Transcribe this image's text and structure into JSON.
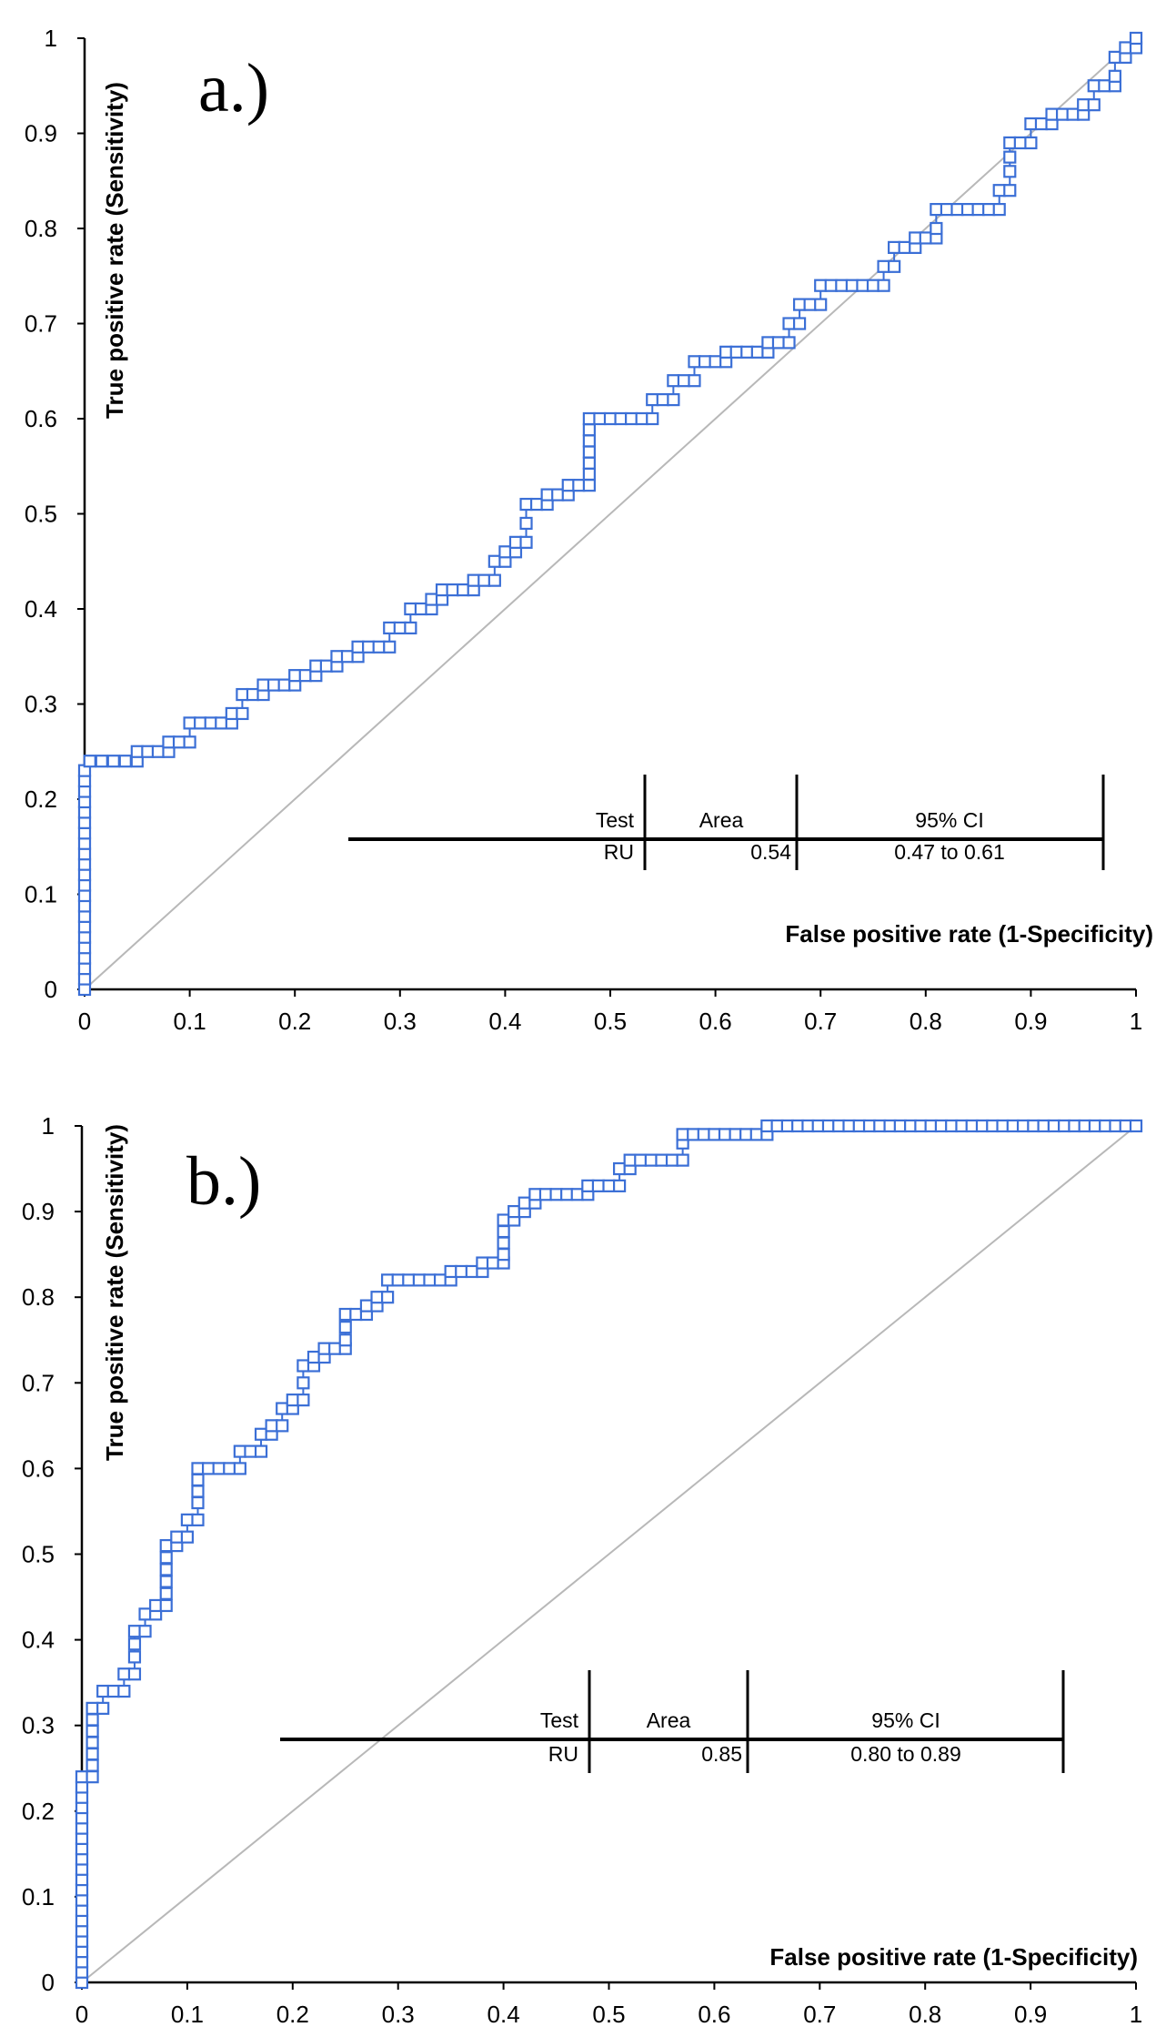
{
  "chart_data": [
    {
      "type": "line",
      "panel_label": "a.)",
      "xlabel": "False positive rate (1-Specificity)",
      "ylabel": "True positive rate (Sensitivity)",
      "xlim": [
        0,
        1
      ],
      "ylim": [
        0,
        1
      ],
      "xticks": [
        "0",
        "0.1",
        "0.2",
        "0.3",
        "0.4",
        "0.5",
        "0.6",
        "0.7",
        "0.8",
        "0.9",
        "1"
      ],
      "yticks": [
        "0",
        "0.1",
        "0.2",
        "0.3",
        "0.4",
        "0.5",
        "0.6",
        "0.7",
        "0.8",
        "0.9",
        "1"
      ],
      "reference_line": true,
      "marker": "open-square",
      "color": "#3b6fd6",
      "roc_points": [
        [
          0,
          0
        ],
        [
          0,
          0.23
        ],
        [
          0.005,
          0.24
        ],
        [
          0.05,
          0.25
        ],
        [
          0.08,
          0.26
        ],
        [
          0.1,
          0.28
        ],
        [
          0.14,
          0.29
        ],
        [
          0.15,
          0.31
        ],
        [
          0.17,
          0.32
        ],
        [
          0.2,
          0.33
        ],
        [
          0.22,
          0.34
        ],
        [
          0.24,
          0.35
        ],
        [
          0.26,
          0.36
        ],
        [
          0.29,
          0.38
        ],
        [
          0.31,
          0.4
        ],
        [
          0.33,
          0.41
        ],
        [
          0.34,
          0.42
        ],
        [
          0.37,
          0.43
        ],
        [
          0.39,
          0.45
        ],
        [
          0.4,
          0.46
        ],
        [
          0.41,
          0.47
        ],
        [
          0.42,
          0.49
        ],
        [
          0.42,
          0.51
        ],
        [
          0.44,
          0.52
        ],
        [
          0.46,
          0.53
        ],
        [
          0.48,
          0.53
        ],
        [
          0.48,
          0.6
        ],
        [
          0.53,
          0.6
        ],
        [
          0.54,
          0.62
        ],
        [
          0.56,
          0.64
        ],
        [
          0.58,
          0.66
        ],
        [
          0.61,
          0.67
        ],
        [
          0.63,
          0.67
        ],
        [
          0.65,
          0.68
        ],
        [
          0.67,
          0.7
        ],
        [
          0.68,
          0.72
        ],
        [
          0.7,
          0.74
        ],
        [
          0.75,
          0.74
        ],
        [
          0.76,
          0.76
        ],
        [
          0.77,
          0.78
        ],
        [
          0.79,
          0.79
        ],
        [
          0.81,
          0.8
        ],
        [
          0.81,
          0.82
        ],
        [
          0.86,
          0.82
        ],
        [
          0.87,
          0.84
        ],
        [
          0.88,
          0.86
        ],
        [
          0.88,
          0.89
        ],
        [
          0.9,
          0.91
        ],
        [
          0.92,
          0.92
        ],
        [
          0.95,
          0.93
        ],
        [
          0.96,
          0.95
        ],
        [
          0.98,
          0.96
        ],
        [
          0.98,
          0.98
        ],
        [
          0.99,
          0.99
        ],
        [
          1,
          1
        ]
      ],
      "table": {
        "headers": [
          "Test",
          "Area",
          "95% CI"
        ],
        "row": {
          "test": "RU",
          "area": "0.54",
          "ci": "0.47  to 0.61"
        }
      }
    },
    {
      "type": "line",
      "panel_label": "b.)",
      "xlabel": "False positive rate (1-Specificity)",
      "ylabel": "True positive rate (Sensitivity)",
      "xlim": [
        0,
        1
      ],
      "ylim": [
        0,
        1
      ],
      "xticks": [
        "0",
        "0.1",
        "0.2",
        "0.3",
        "0.4",
        "0.5",
        "0.6",
        "0.7",
        "0.8",
        "0.9",
        "1"
      ],
      "yticks": [
        "0",
        "0.1",
        "0.2",
        "0.3",
        "0.4",
        "0.5",
        "0.6",
        "0.7",
        "0.8",
        "0.9",
        "1"
      ],
      "reference_line": true,
      "marker": "open-square",
      "color": "#3b6fd6",
      "roc_points": [
        [
          0,
          0
        ],
        [
          0,
          0.24
        ],
        [
          0.01,
          0.24
        ],
        [
          0.01,
          0.32
        ],
        [
          0.02,
          0.34
        ],
        [
          0.03,
          0.34
        ],
        [
          0.04,
          0.36
        ],
        [
          0.05,
          0.38
        ],
        [
          0.05,
          0.41
        ],
        [
          0.06,
          0.43
        ],
        [
          0.07,
          0.44
        ],
        [
          0.08,
          0.44
        ],
        [
          0.08,
          0.51
        ],
        [
          0.09,
          0.52
        ],
        [
          0.1,
          0.54
        ],
        [
          0.11,
          0.56
        ],
        [
          0.11,
          0.6
        ],
        [
          0.15,
          0.6
        ],
        [
          0.15,
          0.62
        ],
        [
          0.17,
          0.64
        ],
        [
          0.18,
          0.65
        ],
        [
          0.19,
          0.67
        ],
        [
          0.2,
          0.68
        ],
        [
          0.21,
          0.7
        ],
        [
          0.21,
          0.72
        ],
        [
          0.22,
          0.73
        ],
        [
          0.23,
          0.74
        ],
        [
          0.25,
          0.75
        ],
        [
          0.25,
          0.78
        ],
        [
          0.27,
          0.79
        ],
        [
          0.28,
          0.8
        ],
        [
          0.29,
          0.82
        ],
        [
          0.35,
          0.82
        ],
        [
          0.35,
          0.83
        ],
        [
          0.38,
          0.84
        ],
        [
          0.4,
          0.85
        ],
        [
          0.4,
          0.89
        ],
        [
          0.41,
          0.9
        ],
        [
          0.42,
          0.91
        ],
        [
          0.43,
          0.92
        ],
        [
          0.47,
          0.92
        ],
        [
          0.48,
          0.93
        ],
        [
          0.5,
          0.93
        ],
        [
          0.51,
          0.95
        ],
        [
          0.52,
          0.96
        ],
        [
          0.56,
          0.96
        ],
        [
          0.57,
          0.98
        ],
        [
          0.57,
          0.99
        ],
        [
          0.65,
          0.99
        ],
        [
          0.65,
          1
        ],
        [
          1,
          1
        ]
      ],
      "table": {
        "headers": [
          "Test",
          "Area",
          "95% CI"
        ],
        "row": {
          "test": "RU",
          "area": "0.85",
          "ci": "0.80  to 0.89"
        }
      }
    }
  ]
}
